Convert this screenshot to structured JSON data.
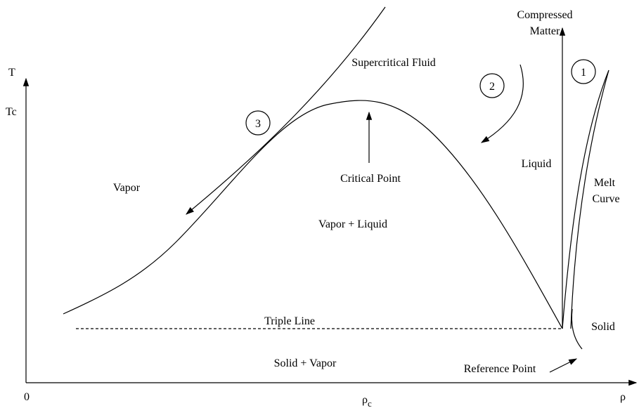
{
  "axes": {
    "y_label": "T",
    "y_tick": "Tc",
    "origin": "0",
    "x_label": "ρ",
    "x_tick": {
      "symbol": "ρ",
      "subscript": "c"
    }
  },
  "regions": {
    "supercritical": "Supercritical Fluid",
    "vapor": "Vapor",
    "vapor_liquid": "Vapor + Liquid",
    "liquid": "Liquid",
    "solid": "Solid",
    "solid_vapor": "Solid + Vapor"
  },
  "annotations": {
    "compressed": [
      "Compressed",
      "Matter"
    ],
    "critical_point": "Critical Point",
    "melt_curve": [
      "Melt",
      "Curve"
    ],
    "triple_line": "Triple Line",
    "reference_point": "Reference Point"
  },
  "paths": [
    "1",
    "2",
    "3"
  ]
}
